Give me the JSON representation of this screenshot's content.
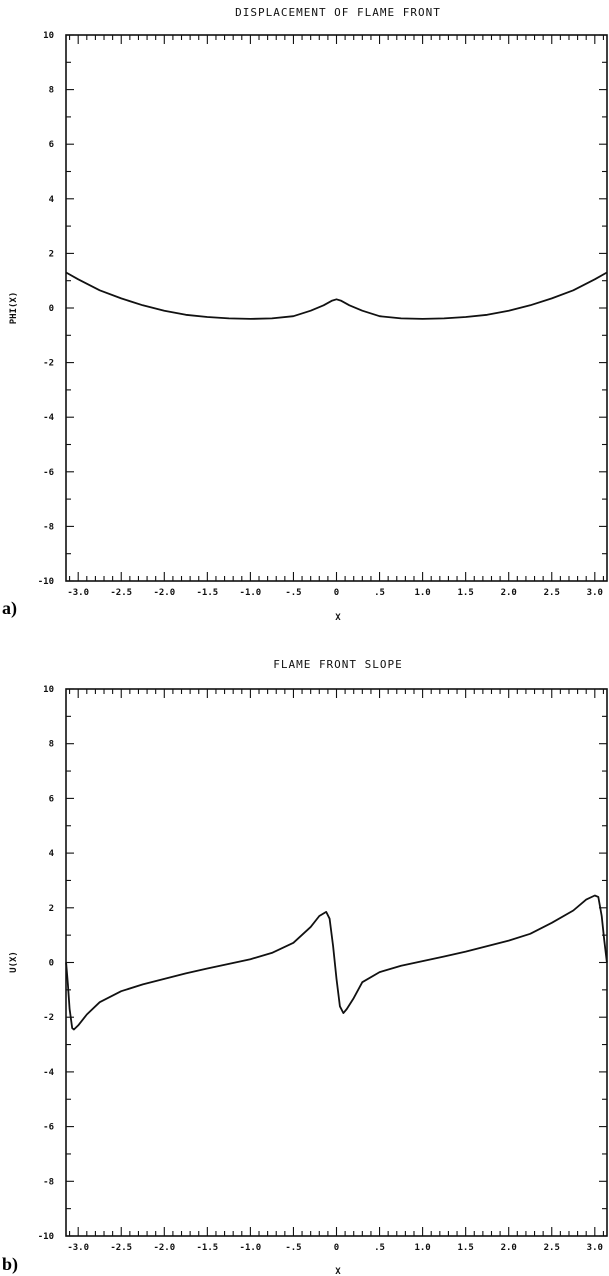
{
  "chart_data": [
    {
      "type": "line",
      "panel_label": "a)",
      "title": "DISPLACEMENT OF FLAME FRONT",
      "xlabel": "X",
      "ylabel": "PHI(X)",
      "xlim": [
        -3.14159,
        3.14159
      ],
      "ylim": [
        -10,
        10
      ],
      "x_tick_labels": [
        "-3.0",
        "-2.5",
        "-2.0",
        "-1.5",
        "-1.0",
        "-.5",
        "0",
        ".5",
        "1.0",
        "1.5",
        "2.0",
        "2.5",
        "3.0"
      ],
      "x_tick_values": [
        -3.0,
        -2.5,
        -2.0,
        -1.5,
        -1.0,
        -0.5,
        0,
        0.5,
        1.0,
        1.5,
        2.0,
        2.5,
        3.0
      ],
      "y_tick_labels": [
        "10",
        "8",
        "6",
        "4",
        "2",
        "0",
        "-2",
        "-4",
        "-6",
        "-8",
        "-10"
      ],
      "y_tick_values": [
        10,
        8,
        6,
        4,
        2,
        0,
        -2,
        -4,
        -6,
        -8,
        -10
      ],
      "grid": false,
      "series": [
        {
          "x": [
            -3.14,
            -3.0,
            -2.75,
            -2.5,
            -2.25,
            -2.0,
            -1.75,
            -1.5,
            -1.25,
            -1.0,
            -0.75,
            -0.5,
            -0.3,
            -0.15,
            -0.05,
            0.0,
            0.05,
            0.15,
            0.3,
            0.5,
            0.75,
            1.0,
            1.25,
            1.5,
            1.75,
            2.0,
            2.25,
            2.5,
            2.75,
            3.0,
            3.14
          ],
          "y": [
            1.3,
            1.05,
            0.65,
            0.35,
            0.1,
            -0.1,
            -0.25,
            -0.33,
            -0.38,
            -0.4,
            -0.38,
            -0.3,
            -0.1,
            0.1,
            0.27,
            0.32,
            0.27,
            0.1,
            -0.1,
            -0.3,
            -0.38,
            -0.4,
            -0.38,
            -0.33,
            -0.25,
            -0.1,
            0.1,
            0.35,
            0.65,
            1.05,
            1.3
          ]
        }
      ]
    },
    {
      "type": "line",
      "panel_label": "b)",
      "title": "FLAME FRONT SLOPE",
      "xlabel": "X",
      "ylabel": "U(X)",
      "xlim": [
        -3.14159,
        3.14159
      ],
      "ylim": [
        -10,
        10
      ],
      "x_tick_labels": [
        "-3.0",
        "-2.5",
        "-2.0",
        "-1.5",
        "-1.0",
        "-.5",
        "0",
        ".5",
        "1.0",
        "1.5",
        "2.0",
        "2.5",
        "3.0"
      ],
      "x_tick_values": [
        -3.0,
        -2.5,
        -2.0,
        -1.5,
        -1.0,
        -0.5,
        0,
        0.5,
        1.0,
        1.5,
        2.0,
        2.5,
        3.0
      ],
      "y_tick_labels": [
        "10",
        "8",
        "6",
        "4",
        "2",
        "0",
        "-2",
        "-4",
        "-6",
        "-8",
        "-10"
      ],
      "y_tick_values": [
        10,
        8,
        6,
        4,
        2,
        0,
        -2,
        -4,
        -6,
        -8,
        -10
      ],
      "grid": false,
      "series": [
        {
          "x": [
            -3.14,
            -3.12,
            -3.1,
            -3.07,
            -3.05,
            -3.0,
            -2.9,
            -2.75,
            -2.5,
            -2.25,
            -2.0,
            -1.75,
            -1.5,
            -1.25,
            -1.0,
            -0.75,
            -0.5,
            -0.3,
            -0.2,
            -0.12,
            -0.08,
            -0.04,
            0.0,
            0.04,
            0.08,
            0.12,
            0.2,
            0.3,
            0.5,
            0.75,
            1.0,
            1.25,
            1.5,
            1.75,
            2.0,
            2.25,
            2.5,
            2.75,
            2.9,
            3.0,
            3.04,
            3.08,
            3.11,
            3.14
          ],
          "y": [
            0.0,
            -0.8,
            -1.7,
            -2.4,
            -2.45,
            -2.3,
            -1.9,
            -1.45,
            -1.05,
            -0.8,
            -0.6,
            -0.4,
            -0.22,
            -0.05,
            0.12,
            0.35,
            0.72,
            1.3,
            1.7,
            1.85,
            1.6,
            0.6,
            -0.6,
            -1.6,
            -1.85,
            -1.7,
            -1.3,
            -0.72,
            -0.35,
            -0.12,
            0.05,
            0.22,
            0.4,
            0.6,
            0.8,
            1.05,
            1.45,
            1.9,
            2.3,
            2.45,
            2.4,
            1.7,
            0.8,
            0.0
          ]
        }
      ]
    }
  ]
}
